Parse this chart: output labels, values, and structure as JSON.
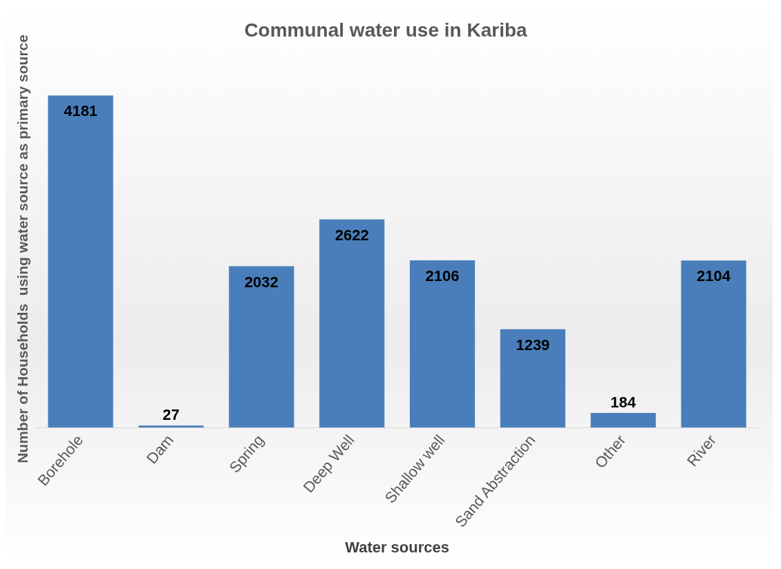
{
  "chart_data": {
    "type": "bar",
    "title": "Communal water use in Kariba",
    "xlabel": "Water sources",
    "ylabel": "Number of Households  using water source as primary source",
    "categories": [
      "Borehole",
      "Dam",
      "Spring",
      "Deep Well",
      "Shallow well",
      "Sand Abstraction",
      "Other",
      "River"
    ],
    "values": [
      4181,
      27,
      2032,
      2622,
      2106,
      1239,
      184,
      2104
    ],
    "color": "#4a7ebb",
    "data_labels": true,
    "grid": false,
    "legend": false
  }
}
